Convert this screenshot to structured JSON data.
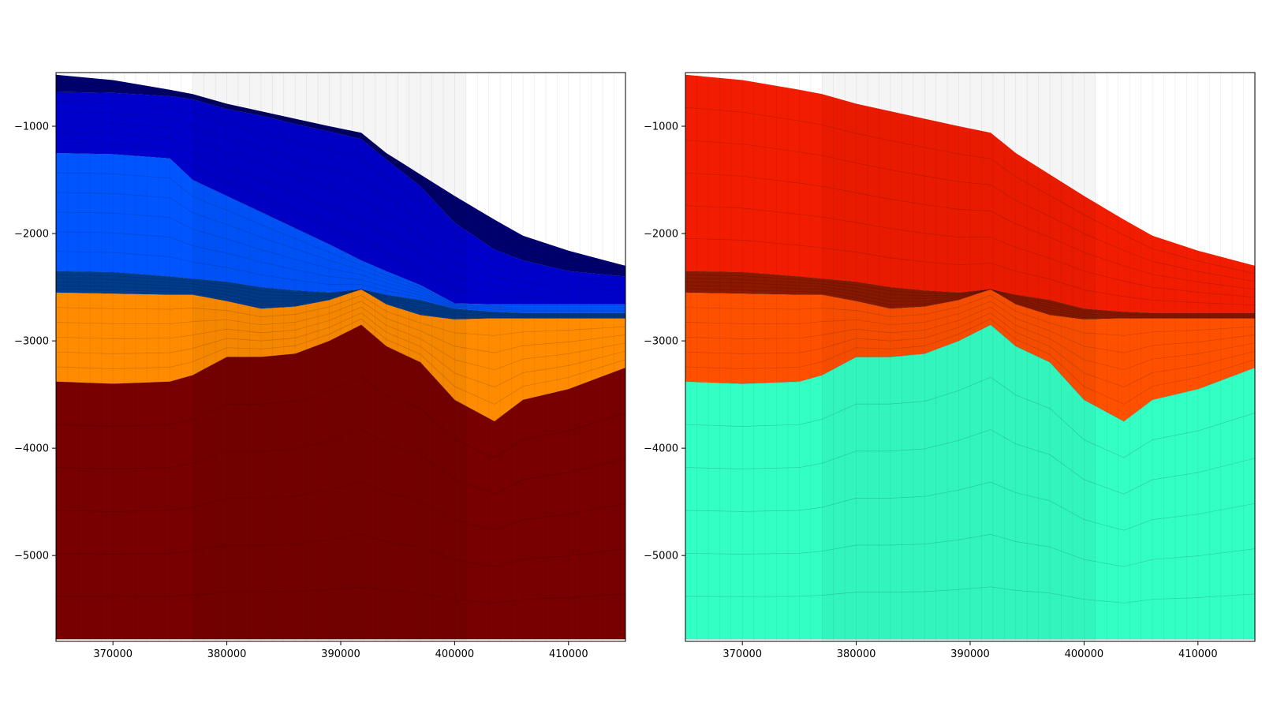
{
  "chart_data": [
    {
      "type": "heatmap",
      "title": "",
      "xlabel": "",
      "ylabel": "",
      "xlim": [
        365000,
        415000
      ],
      "ylim": [
        -5800,
        -500
      ],
      "xticks": [
        370000,
        380000,
        390000,
        400000,
        410000
      ],
      "yticks": [
        -1000,
        -2000,
        -3000,
        -4000,
        -5000
      ],
      "x": [
        365000,
        370000,
        375000,
        377000,
        380000,
        383000,
        386000,
        389000,
        391800,
        394000,
        397000,
        400000,
        403500,
        406000,
        410000,
        415000
      ],
      "surface_top": [
        -520,
        -570,
        -660,
        -700,
        -790,
        -860,
        -930,
        -1000,
        -1060,
        -1250,
        -1450,
        -1650,
        -1870,
        -2020,
        -2160,
        -2300
      ],
      "layers": [
        {
          "name": "",
          "color": "#00006f",
          "base": [
            -680,
            -690,
            -720,
            -750,
            -840,
            -900,
            -980,
            -1050,
            -1120,
            -1310,
            -1560,
            -1900,
            -2150,
            -2250,
            -2350,
            -2400
          ]
        },
        {
          "name": "",
          "color": "#0000cd",
          "base": [
            -1250,
            -1260,
            -1300,
            -1500,
            -1650,
            -1800,
            -1950,
            -2100,
            -2250,
            -2350,
            -2480,
            -2650,
            -2660,
            -2660,
            -2660,
            -2660
          ]
        },
        {
          "name": "",
          "color": "#0055ff",
          "base": [
            -2350,
            -2360,
            -2400,
            -2420,
            -2450,
            -2500,
            -2530,
            -2550,
            -2520,
            -2570,
            -2620,
            -2700,
            -2730,
            -2740,
            -2740,
            -2740
          ]
        },
        {
          "name": "",
          "color": "#003c8c",
          "base": [
            -2550,
            -2560,
            -2570,
            -2570,
            -2630,
            -2700,
            -2680,
            -2620,
            -2520,
            -2660,
            -2760,
            -2800,
            -2790,
            -2790,
            -2790,
            -2790
          ]
        },
        {
          "name": "",
          "color": "#ff8c00",
          "base": [
            -3380,
            -3400,
            -3380,
            -3320,
            -3150,
            -3150,
            -3120,
            -3000,
            -2850,
            -3050,
            -3200,
            -3550,
            -3750,
            -3550,
            -3450,
            -3250
          ]
        },
        {
          "name": "",
          "color": "#780000",
          "base": [
            -5780,
            -5780,
            -5780,
            -5780,
            -5780,
            -5780,
            -5780,
            -5780,
            -5780,
            -5780,
            -5780,
            -5780,
            -5780,
            -5780,
            -5780,
            -5780
          ]
        }
      ]
    },
    {
      "type": "heatmap",
      "title": "",
      "xlabel": "",
      "ylabel": "",
      "xlim": [
        365000,
        415000
      ],
      "ylim": [
        -5800,
        -500
      ],
      "xticks": [
        370000,
        380000,
        390000,
        400000,
        410000
      ],
      "yticks": [
        -1000,
        -2000,
        -3000,
        -4000,
        -5000
      ],
      "x": [
        365000,
        370000,
        375000,
        377000,
        380000,
        383000,
        386000,
        389000,
        391800,
        394000,
        397000,
        400000,
        403500,
        406000,
        410000,
        415000
      ],
      "surface_top": [
        -520,
        -570,
        -660,
        -700,
        -790,
        -860,
        -930,
        -1000,
        -1060,
        -1250,
        -1450,
        -1650,
        -1870,
        -2020,
        -2160,
        -2300
      ],
      "layers": [
        {
          "name": "",
          "color": "#f21c00",
          "base": [
            -2350,
            -2360,
            -2400,
            -2420,
            -2450,
            -2500,
            -2530,
            -2550,
            -2520,
            -2570,
            -2620,
            -2700,
            -2730,
            -2740,
            -2740,
            -2740
          ]
        },
        {
          "name": "",
          "color": "#8c1800",
          "base": [
            -2550,
            -2560,
            -2570,
            -2570,
            -2630,
            -2700,
            -2680,
            -2620,
            -2520,
            -2660,
            -2760,
            -2800,
            -2790,
            -2790,
            -2790,
            -2790
          ]
        },
        {
          "name": "",
          "color": "#ff5000",
          "base": [
            -3380,
            -3400,
            -3380,
            -3320,
            -3150,
            -3150,
            -3120,
            -3000,
            -2850,
            -3050,
            -3200,
            -3550,
            -3750,
            -3550,
            -3450,
            -3250
          ]
        },
        {
          "name": "",
          "color": "#33ffc4",
          "base": [
            -5780,
            -5780,
            -5780,
            -5780,
            -5780,
            -5780,
            -5780,
            -5780,
            -5780,
            -5780,
            -5780,
            -5780,
            -5780,
            -5780,
            -5780,
            -5780
          ]
        }
      ]
    }
  ]
}
